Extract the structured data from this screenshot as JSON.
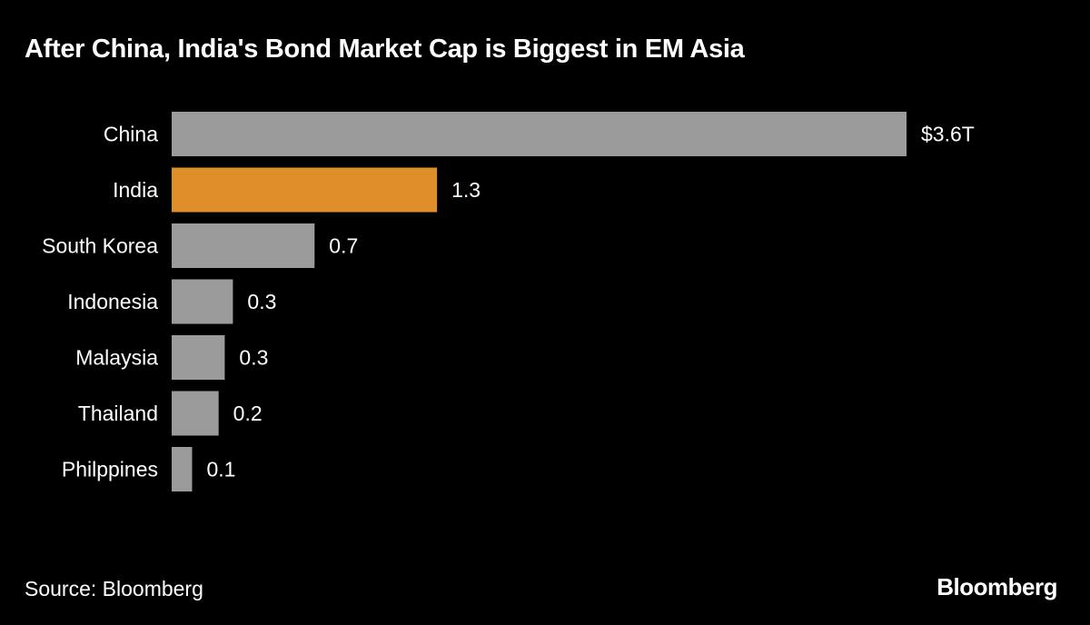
{
  "chart_data": {
    "type": "bar",
    "orientation": "horizontal",
    "title": "After China, India's Bond Market Cap is Biggest in EM Asia",
    "categories": [
      "China",
      "India",
      "South Korea",
      "Indonesia",
      "Malaysia",
      "Thailand",
      "Philppines"
    ],
    "values": [
      3.6,
      1.3,
      0.7,
      0.3,
      0.26,
      0.23,
      0.1
    ],
    "data_labels": [
      "$3.6T",
      "1.3",
      "0.7",
      "0.3",
      "0.3",
      "0.2",
      "0.1"
    ],
    "unit": "USD trillions",
    "highlight_category": "India",
    "colors": {
      "default": "#9b9b9b",
      "highlight": "#e08e2a",
      "background": "#000000",
      "text": "#ffffff"
    },
    "grid": false,
    "legend": "none",
    "xlim": [
      0,
      3.6
    ]
  },
  "source": "Source: Bloomberg",
  "logo": "Bloomberg"
}
